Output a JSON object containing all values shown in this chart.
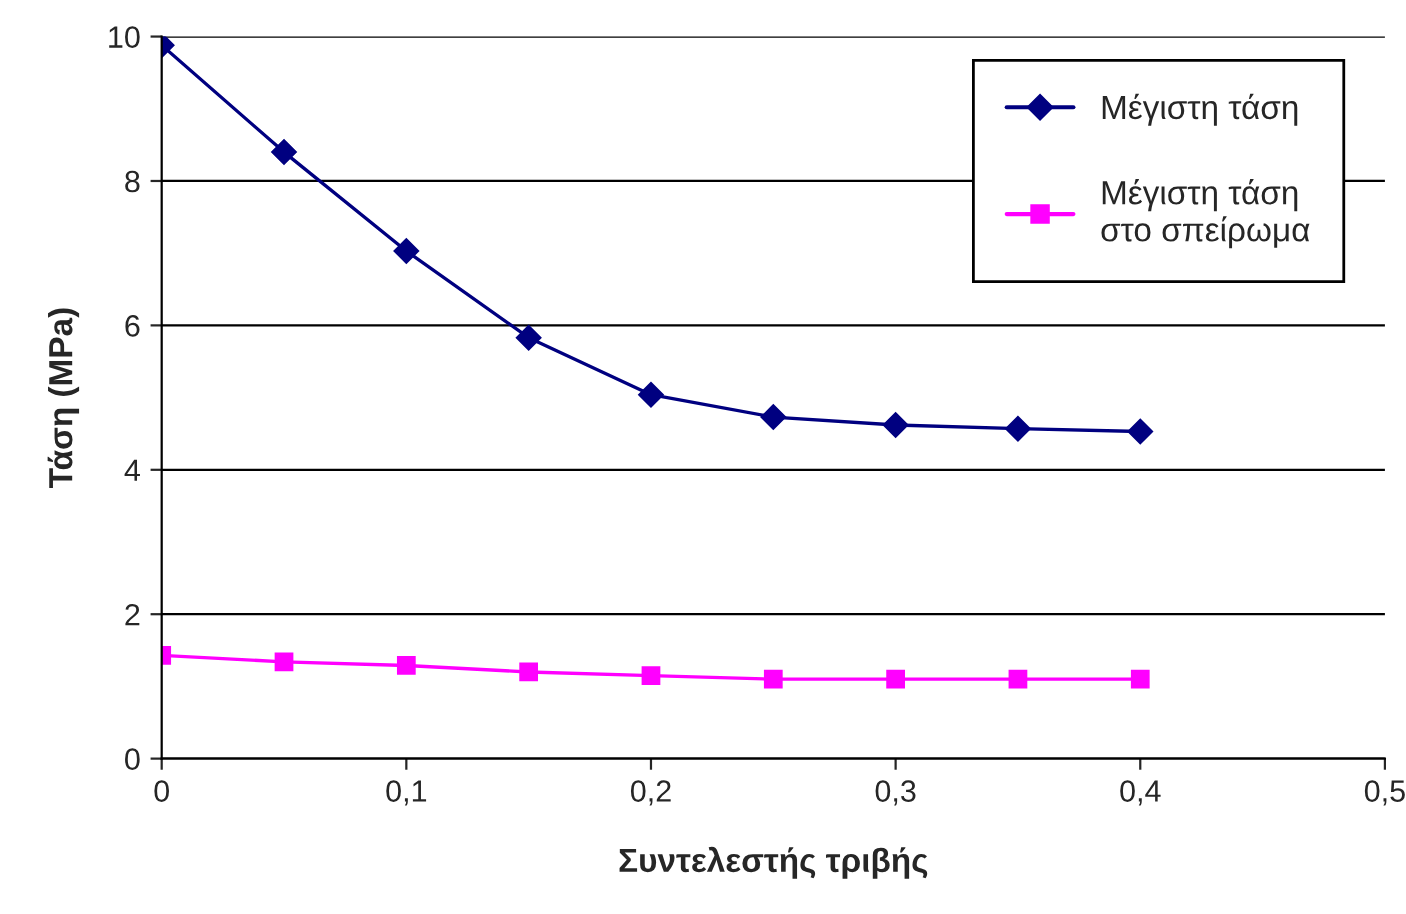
{
  "chart_data": {
    "type": "line",
    "xlabel": "Συντελεστής τριβής",
    "ylabel": "Τάση (MPa)",
    "x": [
      0,
      0.05,
      0.1,
      0.15,
      0.2,
      0.25,
      0.3,
      0.35,
      0.4
    ],
    "series": [
      {
        "name": "Μέγιστη τάση",
        "color": "#000080",
        "marker": "diamond",
        "values": [
          9.88,
          8.4,
          7.03,
          5.83,
          5.04,
          4.73,
          4.62,
          4.57,
          4.53
        ]
      },
      {
        "name": "Μέγιστη τάση\nστο σπείρωμα",
        "color": "#ff00ff",
        "marker": "square",
        "values": [
          1.43,
          1.34,
          1.29,
          1.2,
          1.15,
          1.1,
          1.1,
          1.1,
          1.1
        ]
      }
    ],
    "xlim": [
      0,
      0.5
    ],
    "xticks": [
      0,
      {
        "value": 0.1,
        "label": "0,1"
      },
      {
        "value": 0.2,
        "label": "0,2"
      },
      {
        "value": 0.3,
        "label": "0,3"
      },
      {
        "value": 0.4,
        "label": "0,4"
      },
      {
        "value": 0.5,
        "label": "0,5"
      }
    ],
    "ylim": [
      0,
      10
    ],
    "yticks": [
      0,
      2,
      4,
      6,
      8,
      10
    ],
    "grid": "y",
    "legend": "top right"
  }
}
